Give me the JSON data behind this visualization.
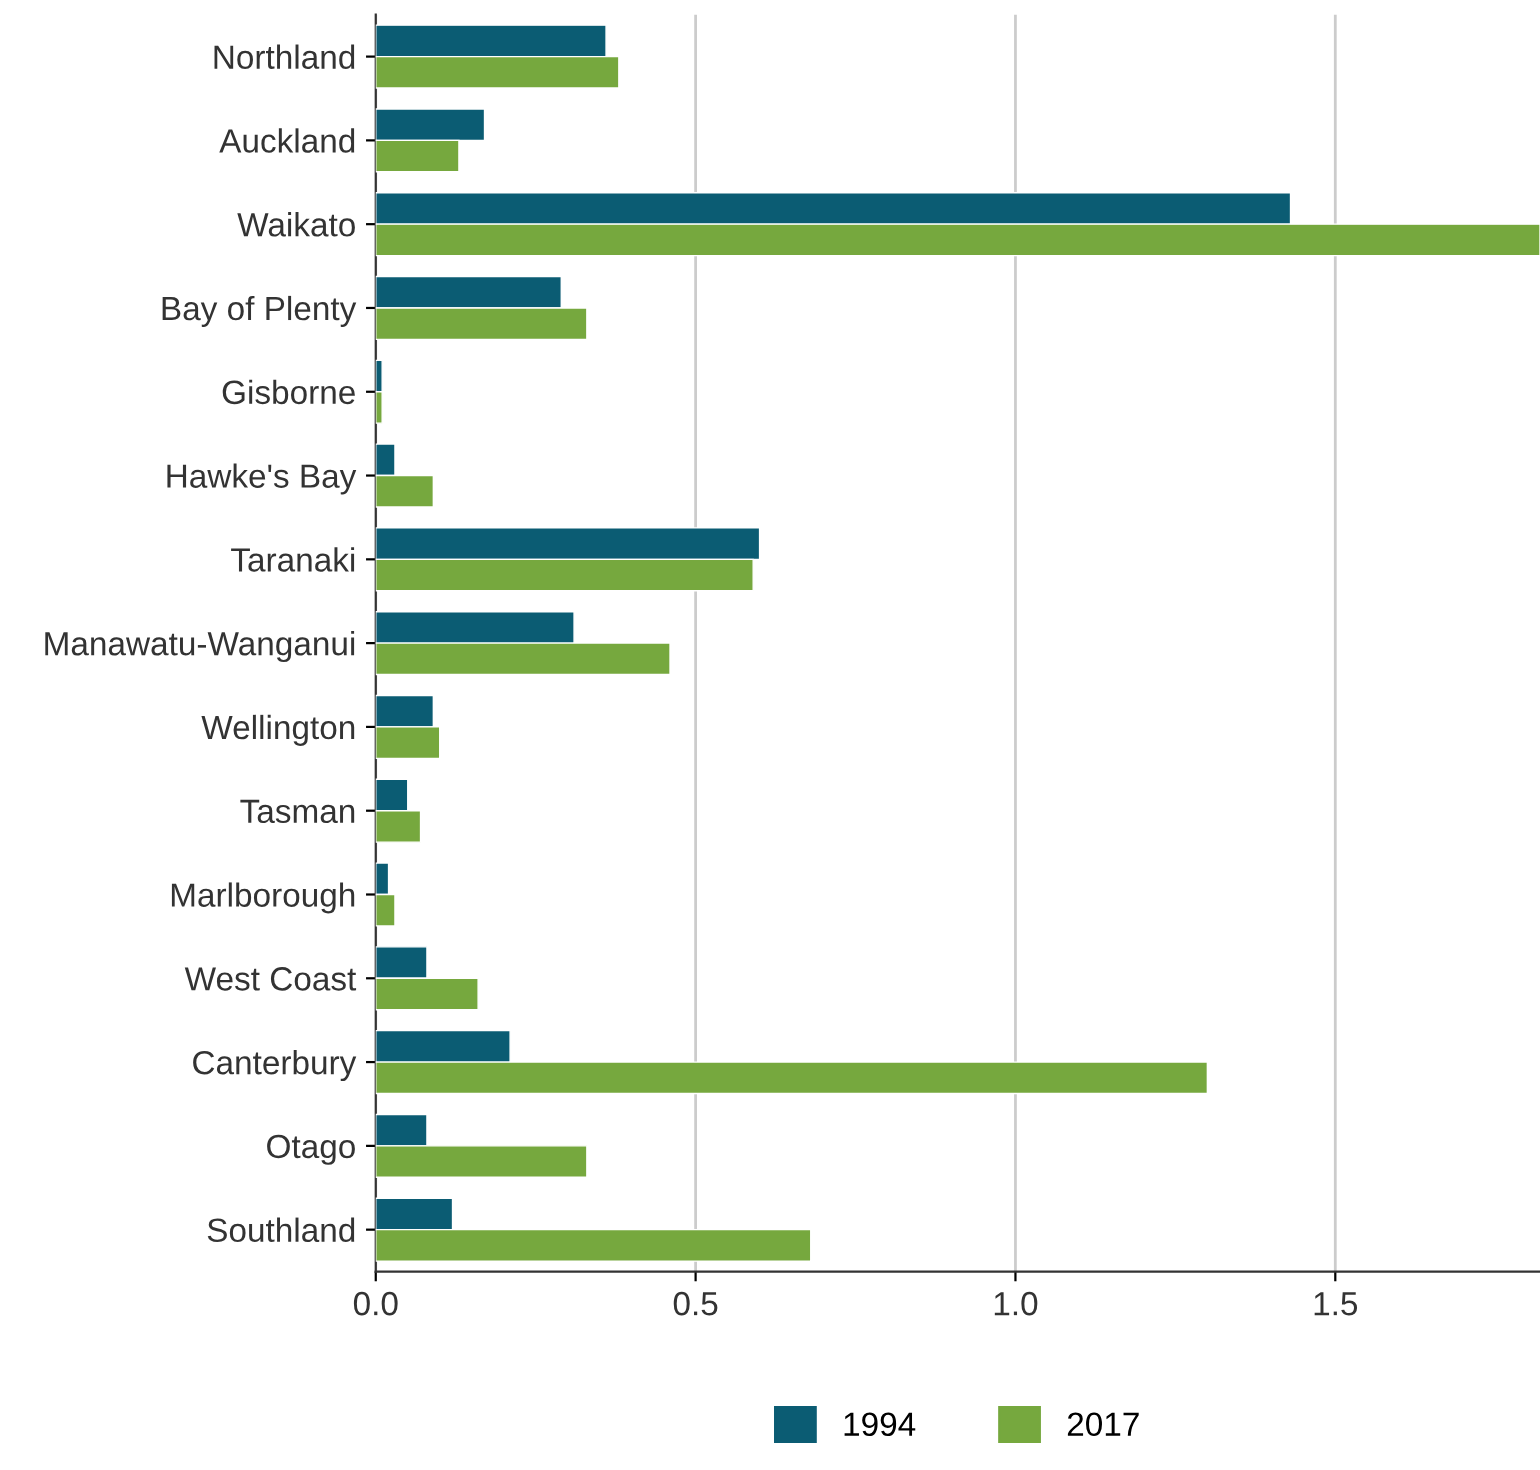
{
  "chart_data": {
    "type": "bar",
    "orientation": "horizontal",
    "categories": [
      "Northland",
      "Auckland",
      "Waikato",
      "Bay of Plenty",
      "Gisborne",
      "Hawke's Bay",
      "Taranaki",
      "Manawatu-Wanganui",
      "Wellington",
      "Tasman",
      "Marlborough",
      "West Coast",
      "Canterbury",
      "Otago",
      "Southland"
    ],
    "series": [
      {
        "name": "1994",
        "color": "#0b5c73",
        "values": [
          0.36,
          0.17,
          1.43,
          0.29,
          0.01,
          0.03,
          0.6,
          0.31,
          0.09,
          0.05,
          0.02,
          0.08,
          0.21,
          0.08,
          0.12
        ]
      },
      {
        "name": "2017",
        "color": "#76a83e",
        "values": [
          0.38,
          0.13,
          1.82,
          0.33,
          0.01,
          0.09,
          0.59,
          0.46,
          0.1,
          0.07,
          0.03,
          0.16,
          1.3,
          0.33,
          0.68
        ]
      }
    ],
    "xlim": [
      0,
      1.82
    ],
    "xticks": [
      {
        "value": 0,
        "label": "0.0"
      },
      {
        "value": 0.5,
        "label": "0.5"
      },
      {
        "value": 1,
        "label": "1.0"
      },
      {
        "value": 1.5,
        "label": "1.5"
      }
    ],
    "grid": "x",
    "legend": "bottom"
  }
}
